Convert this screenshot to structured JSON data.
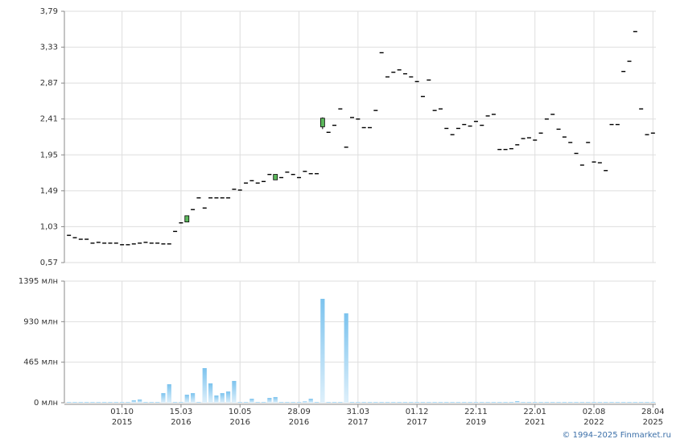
{
  "chart_data": [
    {
      "type": "candlestick",
      "open": [
        0.92,
        0.89,
        0.87,
        0.87,
        0.82,
        0.83,
        0.82,
        0.82,
        0.82,
        0.8,
        0.8,
        0.81,
        0.82,
        0.83,
        0.82,
        0.82,
        0.81,
        0.81,
        0.97,
        1.08,
        1.09,
        1.25,
        1.4,
        1.27,
        1.4,
        1.4,
        1.4,
        1.4,
        1.51,
        1.5,
        1.59,
        1.62,
        1.59,
        1.61,
        1.7,
        1.63,
        1.66,
        1.73,
        1.7,
        1.66,
        1.74,
        1.71,
        1.71,
        2.31,
        2.24,
        2.33,
        2.54,
        2.05,
        2.43,
        2.41,
        2.3,
        2.3,
        2.52,
        3.26,
        2.95,
        3.01,
        3.04,
        2.99,
        2.95,
        2.89,
        2.7,
        2.91,
        2.52,
        2.54,
        2.29,
        2.21,
        2.29,
        2.34,
        2.32,
        2.38,
        2.33,
        2.45,
        2.47,
        2.02,
        2.02,
        2.03,
        2.08,
        2.16,
        2.17,
        2.14,
        2.23,
        2.41,
        2.47,
        2.28,
        2.18,
        2.11,
        1.97,
        1.82,
        2.11,
        1.86,
        1.85,
        1.75,
        2.34,
        2.34,
        3.02,
        3.15,
        3.53,
        2.54,
        2.21,
        2.23
      ],
      "high": [
        0.92,
        0.89,
        0.87,
        0.87,
        0.82,
        0.83,
        0.82,
        0.82,
        0.82,
        0.8,
        0.8,
        0.81,
        0.82,
        0.83,
        0.82,
        0.82,
        0.81,
        0.81,
        0.97,
        1.08,
        1.17,
        1.25,
        1.4,
        1.27,
        1.4,
        1.4,
        1.4,
        1.4,
        1.51,
        1.5,
        1.59,
        1.62,
        1.59,
        1.61,
        1.7,
        1.7,
        1.66,
        1.73,
        1.7,
        1.66,
        1.74,
        1.71,
        1.71,
        2.43,
        2.24,
        2.33,
        2.54,
        2.05,
        2.43,
        2.41,
        2.3,
        2.3,
        2.52,
        3.26,
        2.95,
        3.01,
        3.04,
        2.99,
        2.95,
        2.89,
        2.7,
        2.91,
        2.52,
        2.54,
        2.29,
        2.21,
        2.29,
        2.34,
        2.32,
        2.38,
        2.33,
        2.45,
        2.47,
        2.02,
        2.02,
        2.03,
        2.08,
        2.16,
        2.17,
        2.14,
        2.23,
        2.41,
        2.47,
        2.28,
        2.18,
        2.11,
        1.97,
        1.82,
        2.11,
        1.86,
        1.85,
        1.75,
        2.34,
        2.34,
        3.02,
        3.15,
        3.53,
        2.54,
        2.21,
        2.23
      ],
      "low": [
        0.92,
        0.89,
        0.87,
        0.87,
        0.82,
        0.83,
        0.82,
        0.82,
        0.82,
        0.8,
        0.8,
        0.81,
        0.82,
        0.83,
        0.82,
        0.82,
        0.81,
        0.81,
        0.97,
        1.08,
        1.09,
        1.25,
        1.4,
        1.27,
        1.4,
        1.4,
        1.4,
        1.4,
        1.51,
        1.5,
        1.59,
        1.62,
        1.59,
        1.61,
        1.7,
        1.63,
        1.66,
        1.73,
        1.7,
        1.66,
        1.74,
        1.71,
        1.71,
        2.28,
        2.24,
        2.33,
        2.54,
        2.05,
        2.43,
        2.41,
        2.3,
        2.3,
        2.52,
        3.26,
        2.95,
        3.01,
        3.04,
        2.99,
        2.95,
        2.89,
        2.7,
        2.91,
        2.52,
        2.54,
        2.29,
        2.21,
        2.29,
        2.34,
        2.32,
        2.38,
        2.33,
        2.45,
        2.47,
        2.02,
        2.02,
        2.03,
        2.08,
        2.16,
        2.17,
        2.14,
        2.23,
        2.41,
        2.47,
        2.28,
        2.18,
        2.11,
        1.97,
        1.82,
        2.11,
        1.86,
        1.85,
        1.75,
        2.34,
        2.34,
        3.02,
        3.15,
        3.53,
        2.54,
        2.21,
        2.23
      ],
      "close": [
        0.92,
        0.89,
        0.87,
        0.87,
        0.82,
        0.83,
        0.82,
        0.82,
        0.82,
        0.8,
        0.8,
        0.81,
        0.82,
        0.83,
        0.82,
        0.82,
        0.81,
        0.81,
        0.97,
        1.08,
        1.17,
        1.25,
        1.4,
        1.27,
        1.4,
        1.4,
        1.4,
        1.4,
        1.51,
        1.5,
        1.59,
        1.62,
        1.59,
        1.61,
        1.7,
        1.7,
        1.66,
        1.73,
        1.7,
        1.66,
        1.74,
        1.71,
        1.71,
        2.42,
        2.24,
        2.33,
        2.54,
        2.05,
        2.43,
        2.41,
        2.3,
        2.3,
        2.52,
        3.26,
        2.95,
        3.01,
        3.04,
        2.99,
        2.95,
        2.89,
        2.7,
        2.91,
        2.52,
        2.54,
        2.29,
        2.21,
        2.29,
        2.34,
        2.32,
        2.38,
        2.33,
        2.45,
        2.47,
        2.02,
        2.02,
        2.03,
        2.08,
        2.16,
        2.17,
        2.14,
        2.23,
        2.41,
        2.47,
        2.28,
        2.18,
        2.11,
        1.97,
        1.82,
        2.11,
        1.86,
        1.85,
        1.75,
        2.34,
        2.34,
        3.02,
        3.15,
        3.53,
        2.54,
        2.21,
        2.23
      ],
      "up_color": "#5cb85c",
      "color": "#000000",
      "ylim": [
        0.57,
        3.79
      ],
      "yticks": [
        {
          "value": 0.57,
          "label": "0,57"
        },
        {
          "value": 1.03,
          "label": "1,03"
        },
        {
          "value": 1.49,
          "label": "1,49"
        },
        {
          "value": 1.95,
          "label": "1,95"
        },
        {
          "value": 2.41,
          "label": "2,41"
        },
        {
          "value": 2.87,
          "label": "2,87"
        },
        {
          "value": 3.33,
          "label": "3,33"
        },
        {
          "value": 3.79,
          "label": "3,79"
        }
      ],
      "grid": true
    },
    {
      "type": "bar",
      "categories": [
        null,
        null,
        null,
        null,
        null,
        null,
        null,
        null,
        null,
        "01.10\n2015",
        null,
        null,
        null,
        null,
        null,
        null,
        null,
        null,
        null,
        "15.03\n2016",
        null,
        null,
        null,
        null,
        null,
        null,
        null,
        null,
        null,
        "10.05\n2016",
        null,
        null,
        null,
        null,
        null,
        null,
        null,
        null,
        null,
        "28.09\n2016",
        null,
        null,
        null,
        null,
        null,
        null,
        null,
        null,
        null,
        "31.03\n2017",
        null,
        null,
        null,
        null,
        null,
        null,
        null,
        null,
        null,
        "01.12\n2017",
        null,
        null,
        null,
        null,
        null,
        null,
        null,
        null,
        null,
        "22.11\n2019",
        null,
        null,
        null,
        null,
        null,
        null,
        null,
        null,
        null,
        "22.01\n2021",
        null,
        null,
        null,
        null,
        null,
        null,
        null,
        null,
        null,
        "02.08\n2022",
        null,
        null,
        null,
        null,
        null,
        null,
        null,
        null,
        null,
        "28.04\n2025"
      ],
      "values": [
        3,
        3,
        3,
        3,
        3,
        3,
        3,
        3,
        3,
        3,
        3,
        28,
        37,
        3,
        3,
        3,
        110,
        212,
        3,
        3,
        92,
        110,
        3,
        397,
        222,
        83,
        110,
        129,
        250,
        3,
        3,
        46,
        3,
        3,
        55,
        65,
        3,
        3,
        3,
        3,
        15,
        46,
        3,
        1192,
        3,
        3,
        3,
        1025,
        3,
        3,
        3,
        3,
        9,
        3,
        3,
        3,
        3,
        3,
        9,
        3,
        3,
        3,
        3,
        3,
        3,
        3,
        3,
        3,
        3,
        3,
        3,
        3,
        3,
        3,
        3,
        3,
        18,
        3,
        3,
        3,
        3,
        3,
        3,
        3,
        3,
        3,
        3,
        3,
        3,
        3,
        3,
        3,
        3,
        3,
        3,
        3,
        3,
        3,
        3,
        3
      ],
      "color": "#7cc3ee",
      "ylim": [
        0,
        1395
      ],
      "yticks": [
        {
          "value": 0,
          "label": "0 млн"
        },
        {
          "value": 465,
          "label": "465 млн"
        },
        {
          "value": 930,
          "label": "930 млн"
        },
        {
          "value": 1395,
          "label": "1395 млн"
        }
      ],
      "grid": true
    }
  ],
  "credit": "© 1994–2025 Finmarket.ru"
}
